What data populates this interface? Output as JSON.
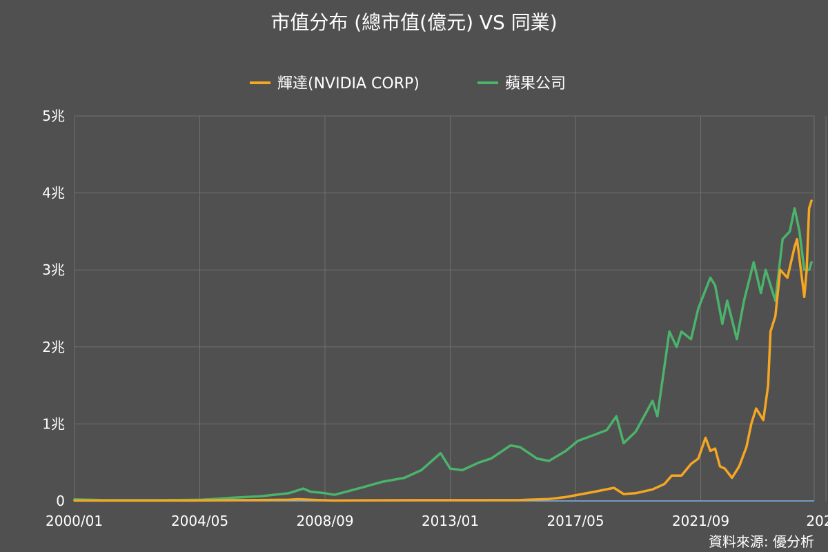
{
  "chart_data": {
    "type": "line",
    "title": "市值分布 (總市值(億元) VS 同業)",
    "source": "資料來源: 優分析",
    "xlabel": "",
    "ylabel": "",
    "ylim": [
      0,
      5
    ],
    "yticks": [
      {
        "value": 0,
        "label": "0"
      },
      {
        "value": 1,
        "label": "1兆"
      },
      {
        "value": 2,
        "label": "2兆"
      },
      {
        "value": 3,
        "label": "3兆"
      },
      {
        "value": 4,
        "label": "4兆"
      },
      {
        "value": 5,
        "label": "5兆"
      }
    ],
    "xlim": [
      "2000/01",
      "2024/06"
    ],
    "xticks": [
      "2000/01",
      "2004/05",
      "2008/09",
      "2013/01",
      "2017/05",
      "2021/09",
      "202..."
    ],
    "grid": true,
    "legend_position": "top-center",
    "series": [
      {
        "name": "輝達(NVIDIA CORP)",
        "color": "#f5a623",
        "points": [
          [
            "2000/01",
            0.005
          ],
          [
            "2002/01",
            0.005
          ],
          [
            "2004/01",
            0.005
          ],
          [
            "2005/06",
            0.01
          ],
          [
            "2006/06",
            0.012
          ],
          [
            "2007/06",
            0.015
          ],
          [
            "2007/10",
            0.022
          ],
          [
            "2008/06",
            0.012
          ],
          [
            "2009/01",
            0.005
          ],
          [
            "2010/01",
            0.008
          ],
          [
            "2012/01",
            0.01
          ],
          [
            "2014/01",
            0.01
          ],
          [
            "2015/06",
            0.012
          ],
          [
            "2016/06",
            0.025
          ],
          [
            "2017/01",
            0.05
          ],
          [
            "2017/06",
            0.08
          ],
          [
            "2018/01",
            0.12
          ],
          [
            "2018/09",
            0.17
          ],
          [
            "2019/01",
            0.09
          ],
          [
            "2019/06",
            0.1
          ],
          [
            "2020/01",
            0.15
          ],
          [
            "2020/06",
            0.22
          ],
          [
            "2020/09",
            0.33
          ],
          [
            "2021/01",
            0.33
          ],
          [
            "2021/05",
            0.48
          ],
          [
            "2021/08",
            0.55
          ],
          [
            "2021/11",
            0.82
          ],
          [
            "2022/01",
            0.65
          ],
          [
            "2022/03",
            0.68
          ],
          [
            "2022/05",
            0.45
          ],
          [
            "2022/07",
            0.42
          ],
          [
            "2022/10",
            0.3
          ],
          [
            "2023/01",
            0.45
          ],
          [
            "2023/04",
            0.7
          ],
          [
            "2023/06",
            1.0
          ],
          [
            "2023/08",
            1.2
          ],
          [
            "2023/11",
            1.05
          ],
          [
            "2024/01",
            1.5
          ],
          [
            "2024/02",
            2.2
          ],
          [
            "2024/04",
            2.4
          ],
          [
            "2024/06",
            3.0
          ],
          [
            "2024/09",
            2.9
          ],
          [
            "2024/12",
            3.3
          ],
          [
            "2025/01",
            3.4
          ],
          [
            "2025/03",
            2.9
          ],
          [
            "2025/04",
            2.65
          ],
          [
            "2025/05",
            3.0
          ],
          [
            "2025/06",
            3.8
          ],
          [
            "2025/07",
            3.9
          ]
        ]
      },
      {
        "name": "蘋果公司",
        "color": "#4bb36b",
        "points": [
          [
            "2000/01",
            0.02
          ],
          [
            "2001/01",
            0.01
          ],
          [
            "2003/01",
            0.01
          ],
          [
            "2004/06",
            0.015
          ],
          [
            "2005/06",
            0.04
          ],
          [
            "2006/06",
            0.06
          ],
          [
            "2007/06",
            0.1
          ],
          [
            "2007/12",
            0.16
          ],
          [
            "2008/03",
            0.12
          ],
          [
            "2008/09",
            0.1
          ],
          [
            "2009/01",
            0.08
          ],
          [
            "2010/01",
            0.18
          ],
          [
            "2010/09",
            0.25
          ],
          [
            "2011/06",
            0.3
          ],
          [
            "2012/01",
            0.4
          ],
          [
            "2012/09",
            0.62
          ],
          [
            "2013/01",
            0.42
          ],
          [
            "2013/06",
            0.4
          ],
          [
            "2014/01",
            0.5
          ],
          [
            "2014/06",
            0.55
          ],
          [
            "2015/02",
            0.72
          ],
          [
            "2015/06",
            0.7
          ],
          [
            "2016/01",
            0.55
          ],
          [
            "2016/06",
            0.52
          ],
          [
            "2017/01",
            0.65
          ],
          [
            "2017/06",
            0.78
          ],
          [
            "2018/01",
            0.86
          ],
          [
            "2018/06",
            0.92
          ],
          [
            "2018/10",
            1.1
          ],
          [
            "2019/01",
            0.75
          ],
          [
            "2019/06",
            0.9
          ],
          [
            "2020/01",
            1.3
          ],
          [
            "2020/03",
            1.1
          ],
          [
            "2020/08",
            2.2
          ],
          [
            "2020/11",
            2.0
          ],
          [
            "2021/01",
            2.2
          ],
          [
            "2021/05",
            2.1
          ],
          [
            "2021/08",
            2.5
          ],
          [
            "2022/01",
            2.9
          ],
          [
            "2022/03",
            2.8
          ],
          [
            "2022/06",
            2.3
          ],
          [
            "2022/08",
            2.6
          ],
          [
            "2022/12",
            2.1
          ],
          [
            "2023/03",
            2.6
          ],
          [
            "2023/07",
            3.1
          ],
          [
            "2023/10",
            2.7
          ],
          [
            "2023/12",
            3.0
          ],
          [
            "2024/04",
            2.6
          ],
          [
            "2024/07",
            3.4
          ],
          [
            "2024/10",
            3.5
          ],
          [
            "2024/12",
            3.8
          ],
          [
            "2025/02",
            3.5
          ],
          [
            "2025/04",
            3.0
          ],
          [
            "2025/06",
            3.0
          ],
          [
            "2025/07",
            3.1
          ]
        ]
      }
    ]
  }
}
